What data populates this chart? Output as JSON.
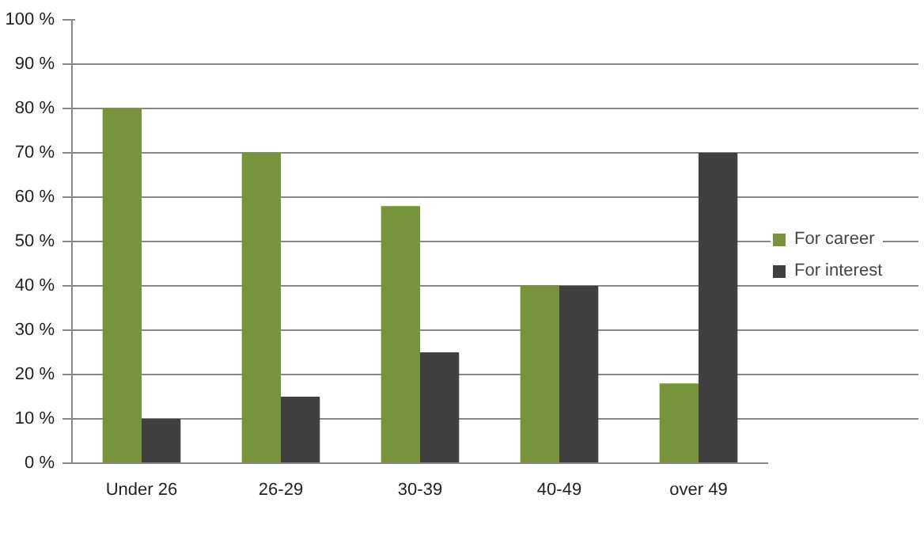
{
  "chart_data": {
    "type": "bar",
    "categories": [
      "Under 26",
      "26-29",
      "30-39",
      "40-49",
      "over 49"
    ],
    "series": [
      {
        "name": "For career",
        "color": "#77933c",
        "values": [
          80,
          70,
          58,
          40,
          18
        ]
      },
      {
        "name": "For interest",
        "color": "#404040",
        "values": [
          10,
          15,
          25,
          40,
          70
        ]
      }
    ],
    "ylim": [
      0,
      100
    ],
    "yticks": [
      {
        "value": 0,
        "label": "0 %"
      },
      {
        "value": 10,
        "label": "10 %"
      },
      {
        "value": 20,
        "label": "20 %"
      },
      {
        "value": 30,
        "label": "30 %"
      },
      {
        "value": 40,
        "label": "40 %"
      },
      {
        "value": 50,
        "label": "50 %"
      },
      {
        "value": 60,
        "label": "60 %"
      },
      {
        "value": 70,
        "label": "70 %"
      },
      {
        "value": 80,
        "label": "80 %"
      },
      {
        "value": 90,
        "label": "90 %"
      },
      {
        "value": 100,
        "label": "100 %"
      }
    ],
    "grid": "y",
    "legend": "right"
  }
}
